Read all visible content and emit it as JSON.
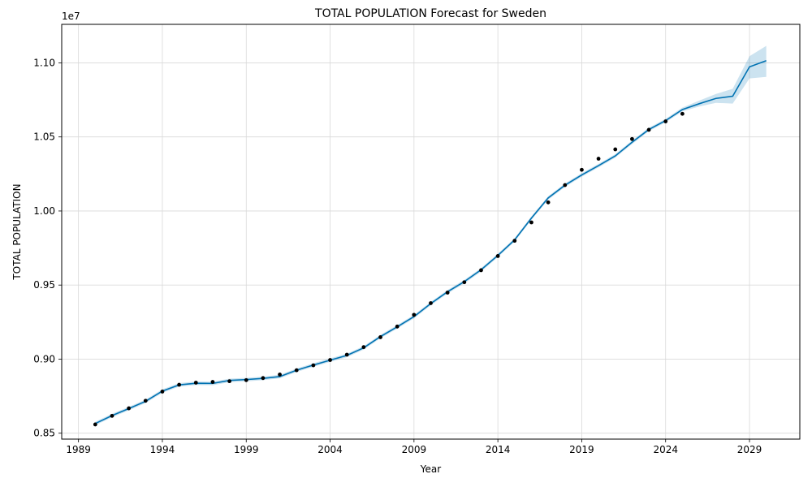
{
  "chart_data": {
    "type": "line",
    "title": "TOTAL POPULATION Forecast for Sweden",
    "xlabel": "Year",
    "ylabel": "TOTAL POPULATION",
    "y_offset_label": "1e7",
    "y_scale": 10000000,
    "xlim": [
      1988.0,
      2032.0
    ],
    "ylim": [
      8.46,
      11.26
    ],
    "x_ticks": [
      1989,
      1994,
      1999,
      2004,
      2009,
      2014,
      2019,
      2024,
      2029
    ],
    "x_tick_labels": [
      "1989",
      "1994",
      "1999",
      "2004",
      "2009",
      "2014",
      "2019",
      "2024",
      "2029"
    ],
    "y_ticks": [
      0.85,
      0.9,
      0.95,
      1.0,
      1.05,
      1.1
    ],
    "y_tick_labels": [
      "0.85",
      "0.90",
      "0.95",
      "1.00",
      "1.05",
      "1.10"
    ],
    "grid": true,
    "colors": {
      "line": "#0072B2",
      "band": "#0072B2",
      "points": "#000000"
    },
    "observed": {
      "x": [
        1990,
        1991,
        1992,
        1993,
        1994,
        1995,
        1996,
        1997,
        1998,
        1999,
        2000,
        2001,
        2002,
        2003,
        2004,
        2005,
        2006,
        2007,
        2008,
        2009,
        2010,
        2011,
        2012,
        2013,
        2014,
        2015,
        2016,
        2017,
        2018,
        2019,
        2020,
        2021,
        2022,
        2023,
        2024,
        2025
      ],
      "y": [
        8.559,
        8.617,
        8.668,
        8.719,
        8.781,
        8.827,
        8.841,
        8.846,
        8.851,
        8.858,
        8.872,
        8.896,
        8.925,
        8.958,
        8.994,
        9.03,
        9.081,
        9.148,
        9.22,
        9.299,
        9.378,
        9.449,
        9.519,
        9.6,
        9.696,
        9.799,
        9.923,
        10.058,
        10.175,
        10.278,
        10.353,
        10.416,
        10.486,
        10.548,
        10.605,
        10.656
      ]
    },
    "forecast": {
      "x": [
        1990,
        1991,
        1992,
        1993,
        1994,
        1995,
        1996,
        1997,
        1998,
        1999,
        2000,
        2001,
        2002,
        2003,
        2004,
        2005,
        2006,
        2007,
        2008,
        2009,
        2010,
        2011,
        2012,
        2013,
        2014,
        2015,
        2016,
        2017,
        2018,
        2019,
        2020,
        2021,
        2022,
        2023,
        2024,
        2025,
        2026,
        2027,
        2028,
        2029,
        2030
      ],
      "yhat": [
        8.565,
        8.619,
        8.666,
        8.715,
        8.784,
        8.826,
        8.837,
        8.836,
        8.856,
        8.862,
        8.87,
        8.882,
        8.925,
        8.96,
        8.993,
        9.025,
        9.076,
        9.152,
        9.218,
        9.287,
        9.375,
        9.455,
        9.523,
        9.603,
        9.7,
        9.805,
        9.952,
        10.088,
        10.174,
        10.243,
        10.306,
        10.372,
        10.464,
        10.55,
        10.61,
        10.685,
        10.724,
        10.76,
        10.775,
        10.973,
        11.015
      ],
      "yhat_lower": [
        8.553,
        8.607,
        8.654,
        8.703,
        8.772,
        8.814,
        8.825,
        8.824,
        8.844,
        8.85,
        8.858,
        8.87,
        8.913,
        8.948,
        8.981,
        9.013,
        9.064,
        9.14,
        9.206,
        9.275,
        9.363,
        9.443,
        9.511,
        9.591,
        9.688,
        9.793,
        9.94,
        10.076,
        10.162,
        10.231,
        10.294,
        10.36,
        10.452,
        10.538,
        10.598,
        10.672,
        10.705,
        10.73,
        10.725,
        10.895,
        10.905
      ],
      "yhat_upper": [
        8.577,
        8.631,
        8.678,
        8.727,
        8.796,
        8.838,
        8.849,
        8.848,
        8.868,
        8.874,
        8.882,
        8.894,
        8.937,
        8.972,
        9.005,
        9.037,
        9.088,
        9.164,
        9.23,
        9.299,
        9.387,
        9.467,
        9.535,
        9.615,
        9.712,
        9.817,
        9.964,
        10.1,
        10.186,
        10.255,
        10.318,
        10.384,
        10.476,
        10.562,
        10.622,
        10.698,
        10.745,
        10.79,
        10.825,
        11.045,
        11.115
      ]
    }
  }
}
